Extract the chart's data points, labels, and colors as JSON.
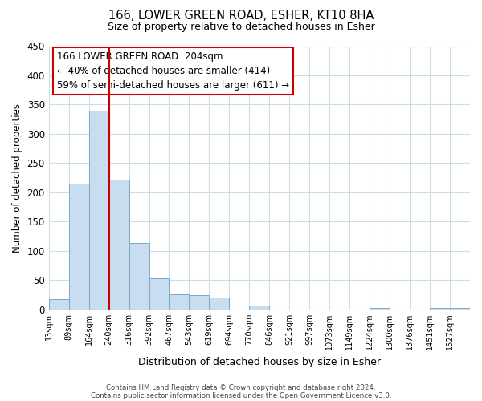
{
  "title": "166, LOWER GREEN ROAD, ESHER, KT10 8HA",
  "subtitle": "Size of property relative to detached houses in Esher",
  "xlabel": "Distribution of detached houses by size in Esher",
  "ylabel": "Number of detached properties",
  "bar_color": "#c8ddef",
  "bar_edge_color": "#7aaac8",
  "vline_color": "#cc0000",
  "vline_x_index": 3,
  "bin_labels": [
    "13sqm",
    "89sqm",
    "164sqm",
    "240sqm",
    "316sqm",
    "392sqm",
    "467sqm",
    "543sqm",
    "619sqm",
    "694sqm",
    "770sqm",
    "846sqm",
    "921sqm",
    "997sqm",
    "1073sqm",
    "1149sqm",
    "1224sqm",
    "1300sqm",
    "1376sqm",
    "1451sqm",
    "1527sqm"
  ],
  "bar_heights": [
    18,
    215,
    340,
    222,
    113,
    53,
    25,
    24,
    20,
    0,
    7,
    0,
    0,
    0,
    0,
    0,
    2,
    0,
    0,
    2,
    2
  ],
  "ylim": [
    0,
    450
  ],
  "yticks": [
    0,
    50,
    100,
    150,
    200,
    250,
    300,
    350,
    400,
    450
  ],
  "annotation_title": "166 LOWER GREEN ROAD: 204sqm",
  "annotation_line1": "← 40% of detached houses are smaller (414)",
  "annotation_line2": "59% of semi-detached houses are larger (611) →",
  "annotation_box_color": "#ffffff",
  "annotation_box_edge": "#cc0000",
  "footer_line1": "Contains HM Land Registry data © Crown copyright and database right 2024.",
  "footer_line2": "Contains public sector information licensed under the Open Government Licence v3.0.",
  "background_color": "#ffffff",
  "grid_color": "#ccdde8"
}
